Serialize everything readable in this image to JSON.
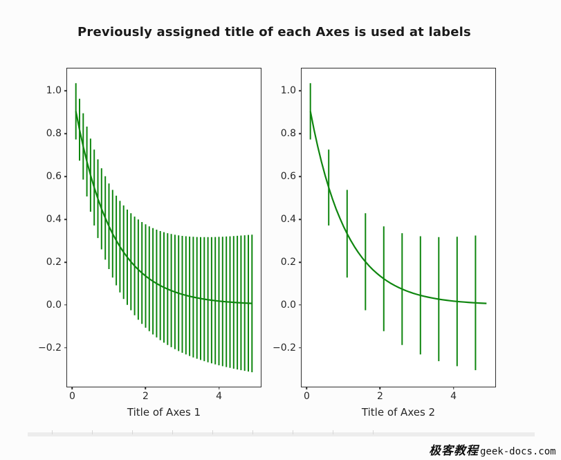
{
  "figure": {
    "suptitle": "Previously assigned title of each Axes is used at labels",
    "background": "#fcfcfc",
    "spine_color": "#2e2e2e"
  },
  "watermark": {
    "cn": "极客教程",
    "en": "geek-docs.com"
  },
  "chart_data": [
    {
      "type": "line",
      "xlabel": "Title of Axes 1",
      "ylabel": "",
      "legend": null,
      "grid": false,
      "series_color": "#0f860f",
      "errorevery": 1,
      "xlim": [
        -0.14,
        5.14
      ],
      "ylim": [
        -0.3816,
        1.1049
      ],
      "xticks": [
        0,
        2,
        4
      ],
      "xtick_labels": [
        "0",
        "2",
        "4"
      ],
      "yticks": [
        1.0,
        0.8,
        0.6,
        0.4,
        0.2,
        0.0,
        -0.2
      ],
      "ytick_labels": [
        "1.0",
        "0.8",
        "0.6",
        "0.4",
        "0.2",
        "0.0",
        "−0.2"
      ],
      "x": [
        0.1,
        0.2,
        0.3,
        0.4,
        0.5,
        0.6,
        0.7,
        0.8,
        0.9,
        1.0,
        1.1,
        1.2,
        1.3,
        1.4,
        1.5,
        1.6,
        1.7,
        1.8,
        1.9,
        2.0,
        2.1,
        2.2,
        2.3,
        2.4,
        2.5,
        2.6,
        2.7,
        2.8,
        2.9,
        3.0,
        3.1,
        3.2,
        3.3,
        3.4,
        3.5,
        3.6,
        3.7,
        3.8,
        3.9,
        4.0,
        4.1,
        4.2,
        4.3,
        4.4,
        4.5,
        4.6,
        4.7,
        4.8,
        4.9
      ],
      "y": [
        0.9048,
        0.8187,
        0.7408,
        0.6703,
        0.6065,
        0.5488,
        0.4966,
        0.4493,
        0.4066,
        0.3679,
        0.3329,
        0.3012,
        0.2725,
        0.2466,
        0.2231,
        0.2019,
        0.1827,
        0.1653,
        0.1496,
        0.1353,
        0.1225,
        0.1108,
        0.1003,
        0.0907,
        0.0821,
        0.0743,
        0.0672,
        0.0608,
        0.055,
        0.0498,
        0.045,
        0.0408,
        0.0369,
        0.0334,
        0.0302,
        0.0273,
        0.0247,
        0.0224,
        0.0202,
        0.0183,
        0.0166,
        0.015,
        0.0136,
        0.0123,
        0.0111,
        0.0101,
        0.0091,
        0.0082,
        0.0074
      ],
      "yerr": [
        0.1316,
        0.1447,
        0.1548,
        0.1632,
        0.1707,
        0.1775,
        0.1837,
        0.1894,
        0.1949,
        0.2,
        0.2049,
        0.2095,
        0.214,
        0.2183,
        0.2225,
        0.2265,
        0.2304,
        0.2342,
        0.2378,
        0.2414,
        0.2449,
        0.2483,
        0.2517,
        0.2549,
        0.2581,
        0.2612,
        0.2643,
        0.2673,
        0.2703,
        0.2732,
        0.2761,
        0.2789,
        0.2817,
        0.2844,
        0.2871,
        0.2897,
        0.2924,
        0.2949,
        0.2975,
        0.3,
        0.3025,
        0.3049,
        0.3074,
        0.3098,
        0.3121,
        0.3145,
        0.3168,
        0.3191,
        0.3214
      ]
    },
    {
      "type": "line",
      "xlabel": "Title of Axes 2",
      "ylabel": "",
      "legend": null,
      "grid": false,
      "series_color": "#0f860f",
      "errorevery": 5,
      "xlim": [
        -0.14,
        5.14
      ],
      "ylim": [
        -0.3816,
        1.1049
      ],
      "xticks": [
        0,
        2,
        4
      ],
      "xtick_labels": [
        "0",
        "2",
        "4"
      ],
      "yticks": [
        1.0,
        0.8,
        0.6,
        0.4,
        0.2,
        0.0,
        -0.2
      ],
      "ytick_labels": [
        "1.0",
        "0.8",
        "0.6",
        "0.4",
        "0.2",
        "0.0",
        "−0.2"
      ],
      "x": [
        0.1,
        0.2,
        0.3,
        0.4,
        0.5,
        0.6,
        0.7,
        0.8,
        0.9,
        1.0,
        1.1,
        1.2,
        1.3,
        1.4,
        1.5,
        1.6,
        1.7,
        1.8,
        1.9,
        2.0,
        2.1,
        2.2,
        2.3,
        2.4,
        2.5,
        2.6,
        2.7,
        2.8,
        2.9,
        3.0,
        3.1,
        3.2,
        3.3,
        3.4,
        3.5,
        3.6,
        3.7,
        3.8,
        3.9,
        4.0,
        4.1,
        4.2,
        4.3,
        4.4,
        4.5,
        4.6,
        4.7,
        4.8,
        4.9
      ],
      "y": [
        0.9048,
        0.8187,
        0.7408,
        0.6703,
        0.6065,
        0.5488,
        0.4966,
        0.4493,
        0.4066,
        0.3679,
        0.3329,
        0.3012,
        0.2725,
        0.2466,
        0.2231,
        0.2019,
        0.1827,
        0.1653,
        0.1496,
        0.1353,
        0.1225,
        0.1108,
        0.1003,
        0.0907,
        0.0821,
        0.0743,
        0.0672,
        0.0608,
        0.055,
        0.0498,
        0.045,
        0.0408,
        0.0369,
        0.0334,
        0.0302,
        0.0273,
        0.0247,
        0.0224,
        0.0202,
        0.0183,
        0.0166,
        0.015,
        0.0136,
        0.0123,
        0.0111,
        0.0101,
        0.0091,
        0.0082,
        0.0074
      ],
      "yerr": [
        0.1316,
        0.1447,
        0.1548,
        0.1632,
        0.1707,
        0.1775,
        0.1837,
        0.1894,
        0.1949,
        0.2,
        0.2049,
        0.2095,
        0.214,
        0.2183,
        0.2225,
        0.2265,
        0.2304,
        0.2342,
        0.2378,
        0.2414,
        0.2449,
        0.2483,
        0.2517,
        0.2549,
        0.2581,
        0.2612,
        0.2643,
        0.2673,
        0.2703,
        0.2732,
        0.2761,
        0.2789,
        0.2817,
        0.2844,
        0.2871,
        0.2897,
        0.2924,
        0.2949,
        0.2975,
        0.3,
        0.3025,
        0.3049,
        0.3074,
        0.3098,
        0.3121,
        0.3145,
        0.3168,
        0.3191,
        0.3214
      ]
    }
  ],
  "ghost_strip": {
    "tick_offsets": [
      35,
      93,
      151,
      209,
      267,
      325,
      383,
      441,
      499
    ]
  }
}
